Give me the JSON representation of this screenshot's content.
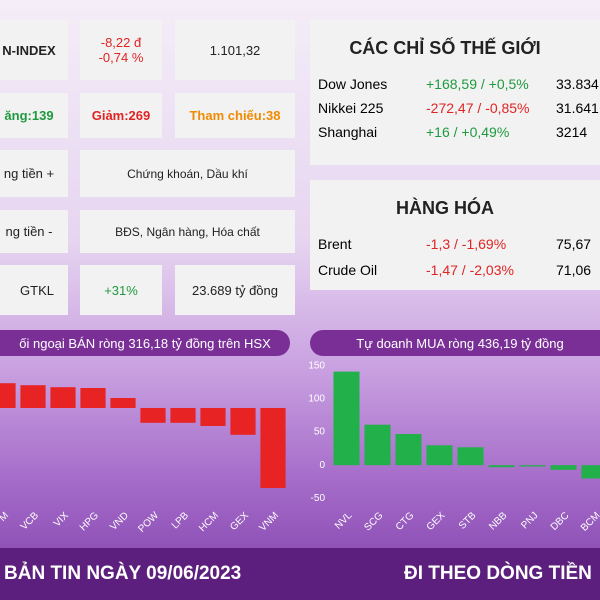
{
  "market": {
    "index": {
      "label": "N-INDEX",
      "change": "-8,22 đ",
      "change_pct": "-0,74 %",
      "value": "1.101,32"
    },
    "breadth": {
      "up": "ăng:139",
      "down": "Giảm:269",
      "ref": "Tham chiếu:38"
    },
    "inflow": {
      "label": "ng tiền +",
      "sectors": "Chứng khoán, Dầu khí"
    },
    "outflow": {
      "label": "ng tiền -",
      "sectors": "BĐS, Ngân hàng, Hóa chất"
    },
    "volume": {
      "label": "GTKL",
      "change": "+31%",
      "value": "23.689 tỷ đồng"
    }
  },
  "world": {
    "title": "CÁC CHỈ SỐ THẾ GIỚI",
    "rows": [
      [
        "Dow Jones",
        "+168,59 / +0,5%",
        "33.834"
      ],
      [
        "Nikkei 225",
        "-272,47 / -0,85%",
        "31.641"
      ],
      [
        "Shanghai",
        "+16 / +0,49%",
        "3214"
      ]
    ]
  },
  "commodities": {
    "title": "HÀNG HÓA",
    "rows": [
      [
        "Brent",
        "-1,3 / -1,69%",
        "75,67"
      ],
      [
        "Crude Oil",
        "-1,47 / -2,03%",
        "71,06"
      ]
    ]
  },
  "chart_data": [
    {
      "type": "bar",
      "title": "ối ngoại BÁN ròng 316,18 tỷ đồng trên HSX",
      "categories": [
        "M",
        "VCB",
        "VIX",
        "HPG",
        "VND",
        "POW",
        "LPB",
        "HCM",
        "GEX",
        "VNM"
      ],
      "values": [
        62,
        57,
        52,
        50,
        25,
        -37,
        -37,
        -45,
        -67,
        -200
      ],
      "color": "#e82323"
    },
    {
      "type": "bar",
      "title": "Tự doanh MUA ròng 436,19 tỷ đồng",
      "categories": [
        "NVL",
        "SCG",
        "CTG",
        "GEX",
        "STB",
        "NBB",
        "PNJ",
        "DBC",
        "BCM"
      ],
      "values": [
        141,
        61,
        47,
        30,
        27,
        -3,
        -2,
        -7,
        -20
      ],
      "color": "#22b04b",
      "ylim": [
        -60,
        160
      ],
      "yticks": [
        150,
        100,
        50,
        0,
        -50
      ]
    }
  ],
  "footer": {
    "date": "BẢN TIN NGÀY 09/06/2023",
    "slogan": "ĐI THEO DÒNG TIỀN"
  }
}
